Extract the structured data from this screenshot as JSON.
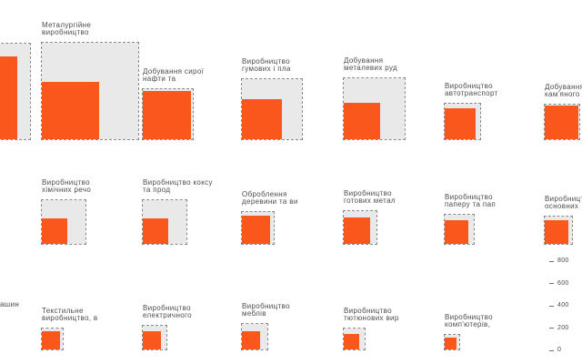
{
  "colors": {
    "square_orange": "#fa571d",
    "box_fill": "#e9e9e9",
    "box_border": "#8a8a8a",
    "label_text": "#4d4d4d",
    "axis_text": "#4a4a4a",
    "background": "#ffffff"
  },
  "chart_data": {
    "type": "small-multiples-squares",
    "title": "",
    "description": "Grid of industry sectors; each cell shows a dashed gray reference square and a solid orange value square (bottom-left anchored), sized per the axis scale at bottom right. Edge cells are clipped by the viewport.",
    "axis": {
      "position": "bottom-right",
      "ticks": [
        800,
        600,
        400,
        200,
        0
      ]
    },
    "cells": [
      {
        "row": 0,
        "col": 0,
        "label": "",
        "square": 745,
        "box": 860
      },
      {
        "row": 0,
        "col": 1,
        "label": "Металургійне\nвиробництво",
        "square": 515,
        "box": 870
      },
      {
        "row": 0,
        "col": 2,
        "label": "Добування сирої\nнафти та",
        "square": 435,
        "box": 450
      },
      {
        "row": 0,
        "col": 3,
        "label": "Виробництво\nгумових і пла",
        "square": 360,
        "box": 540
      },
      {
        "row": 0,
        "col": 4,
        "label": "Добування\nметалевих руд",
        "square": 330,
        "box": 550
      },
      {
        "row": 0,
        "col": 5,
        "label": "Виробництво\nавтотранспорт",
        "square": 280,
        "box": 320
      },
      {
        "row": 0,
        "col": 6,
        "label": "Добування\nкам'яного",
        "square": 300,
        "box": 310
      },
      {
        "row": 1,
        "col": 1,
        "label": "Виробництво\nхімічних речо",
        "square": 230,
        "box": 395
      },
      {
        "row": 1,
        "col": 2,
        "label": "Виробництво коксу\nта прод",
        "square": 230,
        "box": 395
      },
      {
        "row": 1,
        "col": 3,
        "label": "Оброблення\nдеревини та ви",
        "square": 255,
        "box": 285
      },
      {
        "row": 1,
        "col": 4,
        "label": "Виробництво\nготових метал",
        "square": 240,
        "box": 295
      },
      {
        "row": 1,
        "col": 5,
        "label": "Виробництво\nпаперу та пап",
        "square": 215,
        "box": 260
      },
      {
        "row": 1,
        "col": 6,
        "label": "Виробництво\nосновних",
        "square": 215,
        "box": 245
      },
      {
        "row": 2,
        "col": 0,
        "label": "ашин",
        "fragment": true
      },
      {
        "row": 2,
        "col": 1,
        "label": "Текстильне\nвиробництво, в",
        "square": 165,
        "box": 190
      },
      {
        "row": 2,
        "col": 2,
        "label": "Виробництво\nелектричного",
        "square": 165,
        "box": 210
      },
      {
        "row": 2,
        "col": 3,
        "label": "Виробництво\nмеблів",
        "square": 165,
        "box": 230
      },
      {
        "row": 2,
        "col": 4,
        "label": "Виробництво\nтютюнових вир",
        "square": 140,
        "box": 190
      },
      {
        "row": 2,
        "col": 5,
        "label": "Виробництво\nкомп'ютерів,",
        "square": 105,
        "box": 130
      }
    ]
  }
}
